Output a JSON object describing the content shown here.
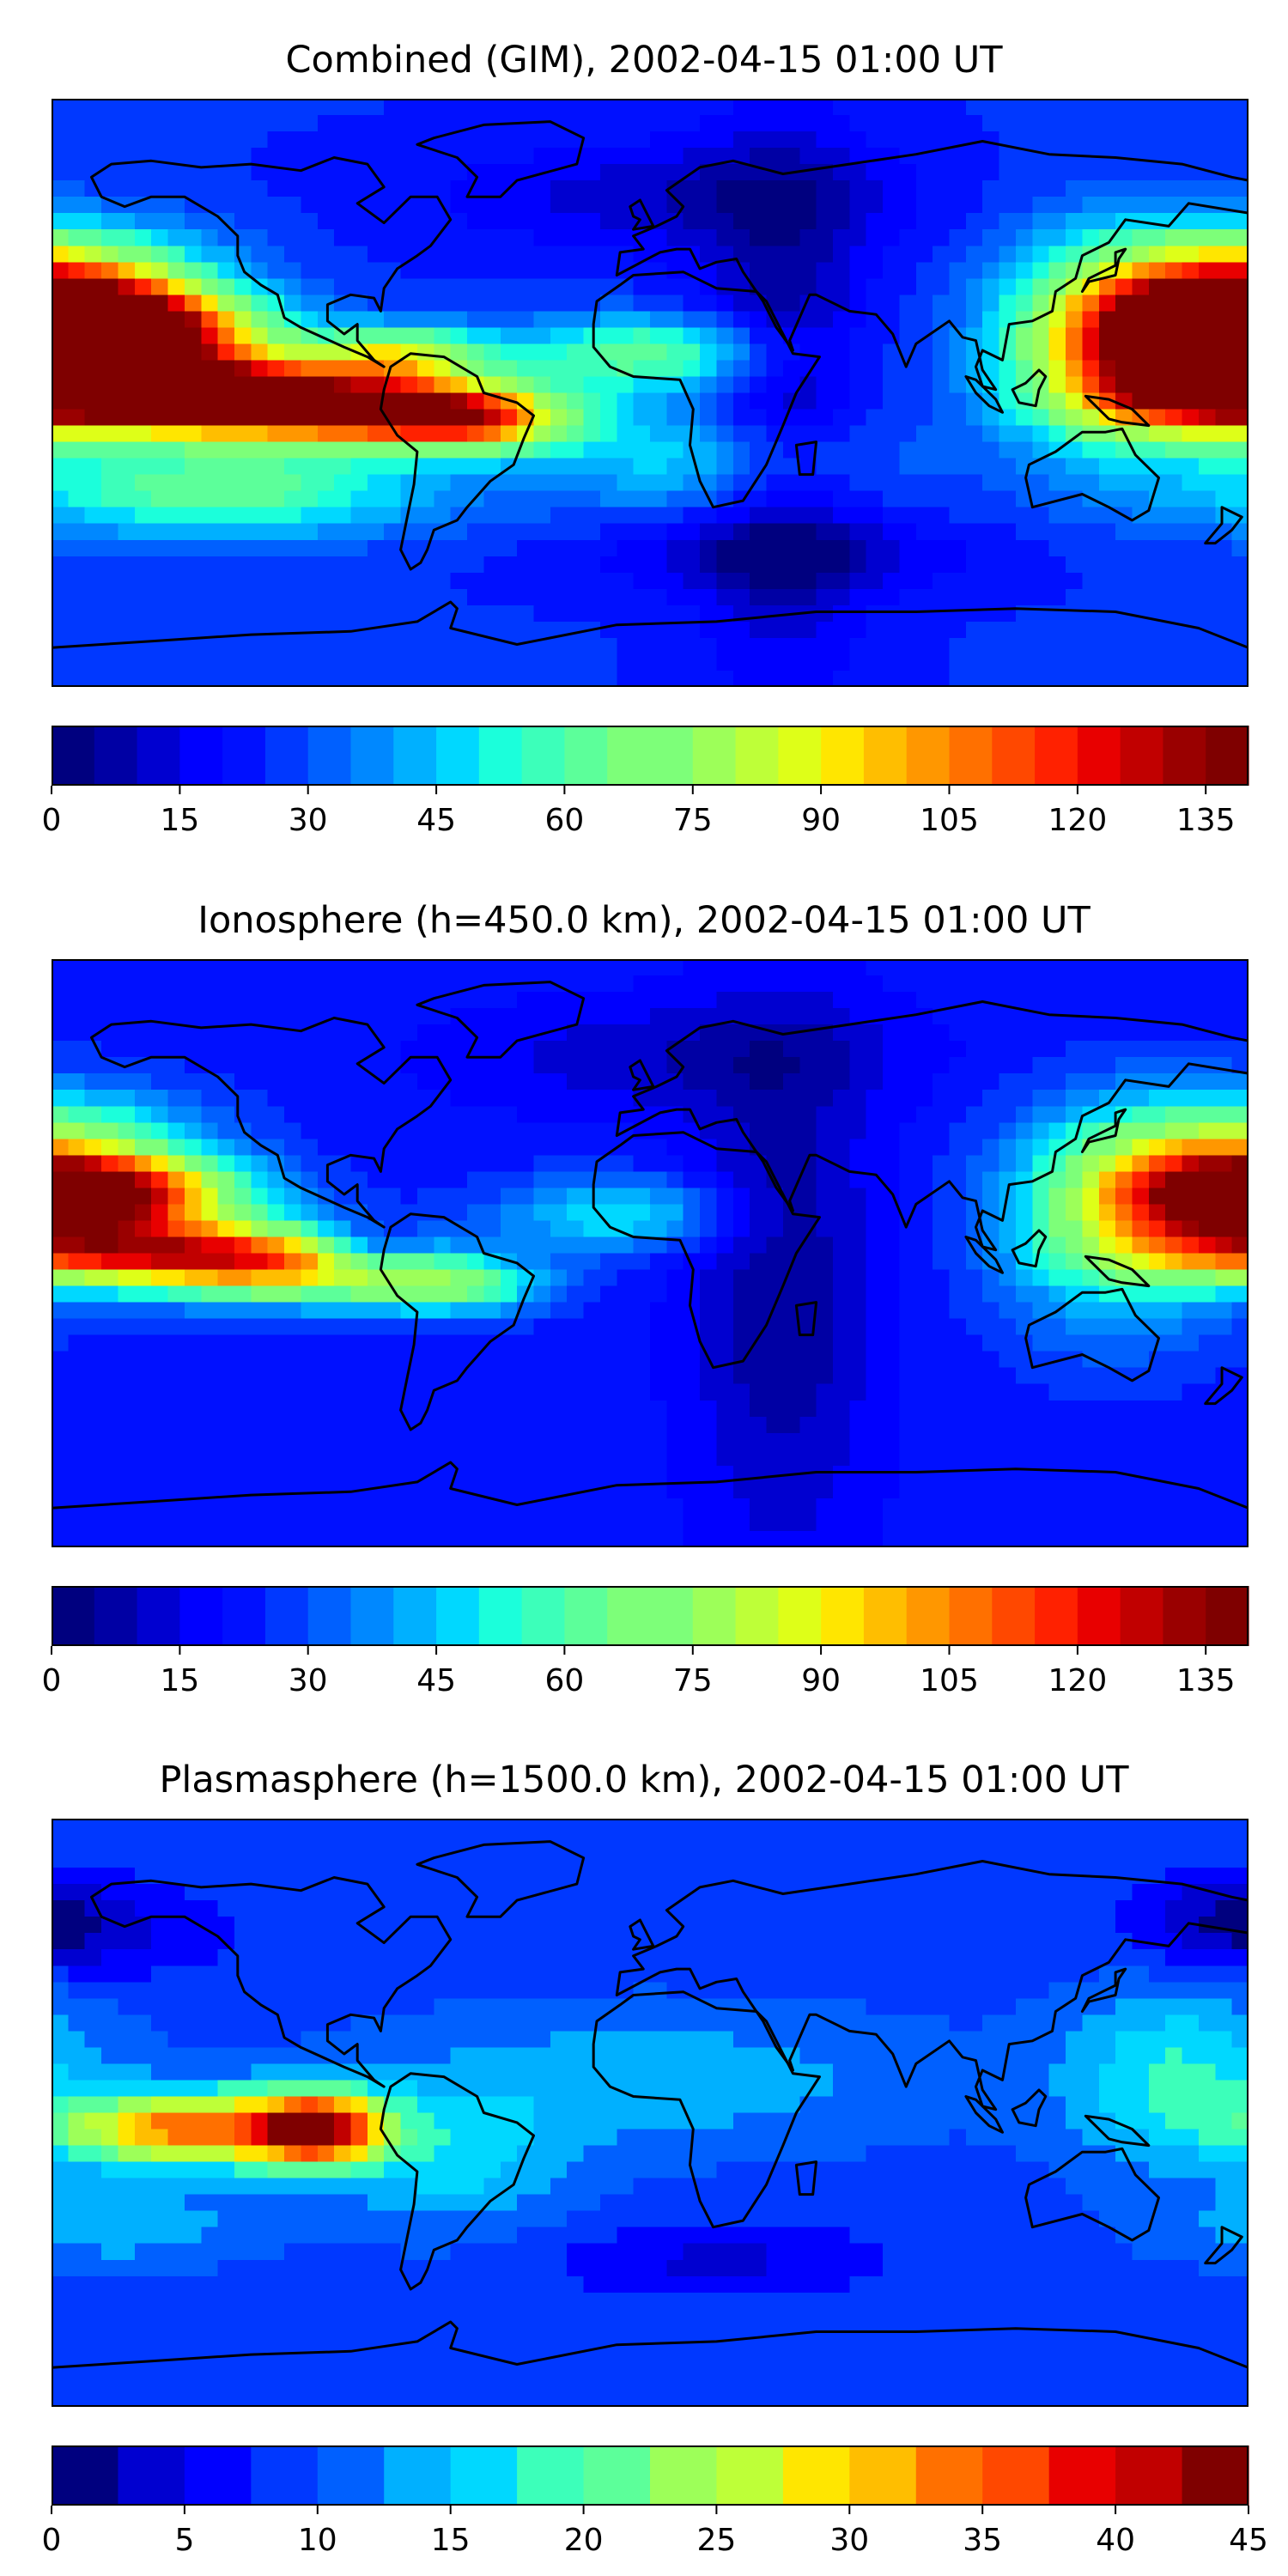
{
  "panels": [
    {
      "id": "combined",
      "title": "Combined (GIM), 2002-04-15 01:00 UT",
      "colorbar": {
        "min": 0,
        "max": 140,
        "levels": 28,
        "ticks": [
          "0",
          "15",
          "30",
          "45",
          "60",
          "75",
          "90",
          "105",
          "120",
          "135"
        ],
        "tick_values": [
          0,
          15,
          30,
          45,
          60,
          75,
          90,
          105,
          120,
          135
        ]
      },
      "map_data": {
        "background_level": 0.18,
        "blobs": [
          {
            "lon": -165,
            "lat": 18,
            "amp": 0.82,
            "slon": 32,
            "slat": 9
          },
          {
            "lon": -145,
            "lat": 0,
            "amp": 0.72,
            "slon": 40,
            "slat": 8
          },
          {
            "lon": -95,
            "lat": -5,
            "amp": 0.55,
            "slon": 35,
            "slat": 8
          },
          {
            "lon": -55,
            "lat": -8,
            "amp": 0.5,
            "slon": 22,
            "slat": 7
          },
          {
            "lon": -75,
            "lat": 12,
            "amp": 0.35,
            "slon": 18,
            "slat": 6
          },
          {
            "lon": -175,
            "lat": 35,
            "amp": 0.35,
            "slon": 30,
            "slat": 12
          },
          {
            "lon": -130,
            "lat": -30,
            "amp": 0.28,
            "slon": 45,
            "slat": 10
          },
          {
            "lon": 172,
            "lat": 22,
            "amp": 0.55,
            "slon": 30,
            "slat": 12
          },
          {
            "lon": 170,
            "lat": 0,
            "amp": 0.45,
            "slon": 30,
            "slat": 10
          },
          {
            "lon": 140,
            "lat": 15,
            "amp": 0.3,
            "slon": 25,
            "slat": 25
          },
          {
            "lon": 0,
            "lat": 12,
            "amp": 0.28,
            "slon": 30,
            "slat": 8
          },
          {
            "lon": 20,
            "lat": -20,
            "amp": 0.18,
            "slon": 35,
            "slat": 12
          },
          {
            "lon": 40,
            "lat": -5,
            "amp": -0.15,
            "slon": 18,
            "slat": 60
          },
          {
            "lon": 10,
            "lat": 60,
            "amp": -0.1,
            "slon": 50,
            "slat": 12
          },
          {
            "lon": 40,
            "lat": -50,
            "amp": -0.1,
            "slon": 40,
            "slat": 8
          }
        ]
      }
    },
    {
      "id": "ionosphere",
      "title": "Ionosphere  (h=450.0 km), 2002-04-15 01:00 UT",
      "colorbar": {
        "min": 0,
        "max": 140,
        "levels": 28,
        "ticks": [
          "0",
          "15",
          "30",
          "45",
          "60",
          "75",
          "90",
          "105",
          "120",
          "135"
        ],
        "tick_values": [
          0,
          15,
          30,
          45,
          60,
          75,
          90,
          105,
          120,
          135
        ]
      },
      "map_data": {
        "background_level": 0.16,
        "blobs": [
          {
            "lon": -165,
            "lat": 18,
            "amp": 0.62,
            "slon": 30,
            "slat": 8
          },
          {
            "lon": -150,
            "lat": 0,
            "amp": 0.55,
            "slon": 40,
            "slat": 7
          },
          {
            "lon": -110,
            "lat": -5,
            "amp": 0.35,
            "slon": 30,
            "slat": 8
          },
          {
            "lon": -60,
            "lat": -10,
            "amp": 0.3,
            "slon": 20,
            "slat": 6
          },
          {
            "lon": -85,
            "lat": 2,
            "amp": -0.18,
            "slon": 12,
            "slat": 5
          },
          {
            "lon": -175,
            "lat": 35,
            "amp": 0.2,
            "slon": 30,
            "slat": 12
          },
          {
            "lon": 172,
            "lat": 18,
            "amp": 0.42,
            "slon": 28,
            "slat": 14
          },
          {
            "lon": 140,
            "lat": 10,
            "amp": 0.25,
            "slon": 25,
            "slat": 25
          },
          {
            "lon": -10,
            "lat": 12,
            "amp": 0.2,
            "slon": 25,
            "slat": 8
          },
          {
            "lon": 40,
            "lat": -10,
            "amp": -0.12,
            "slon": 20,
            "slat": 60
          },
          {
            "lon": 10,
            "lat": 60,
            "amp": -0.08,
            "slon": 50,
            "slat": 12
          }
        ]
      }
    },
    {
      "id": "plasmasphere",
      "title": "Plasmasphere (h=1500.0 km), 2002-04-15 01:00 UT",
      "colorbar": {
        "min": 0,
        "max": 45,
        "levels": 18,
        "ticks": [
          "0",
          "5",
          "10",
          "15",
          "20",
          "25",
          "30",
          "35",
          "40",
          "45"
        ],
        "tick_values": [
          0,
          5,
          10,
          15,
          20,
          25,
          30,
          35,
          40,
          45
        ]
      },
      "map_data": {
        "background_level": 0.2,
        "blobs": [
          {
            "lon": -100,
            "lat": -5,
            "amp": 0.68,
            "slon": 14,
            "slat": 8
          },
          {
            "lon": -140,
            "lat": -5,
            "amp": 0.55,
            "slon": 25,
            "slat": 8
          },
          {
            "lon": -60,
            "lat": -15,
            "amp": 0.15,
            "slon": 25,
            "slat": 15
          },
          {
            "lon": 160,
            "lat": 10,
            "amp": 0.2,
            "slon": 25,
            "slat": 20
          },
          {
            "lon": 0,
            "lat": 10,
            "amp": 0.12,
            "slon": 60,
            "slat": 15
          },
          {
            "lon": -160,
            "lat": -35,
            "amp": 0.12,
            "slon": 30,
            "slat": 8
          },
          {
            "lon": 20,
            "lat": -45,
            "amp": -0.1,
            "slon": 35,
            "slat": 8
          },
          {
            "lon": -170,
            "lat": 55,
            "amp": -0.1,
            "slon": 30,
            "slat": 10
          },
          {
            "lon": 175,
            "lat": 60,
            "amp": -0.1,
            "slon": 20,
            "slat": 10
          }
        ]
      }
    }
  ],
  "jet_colors": [
    "#00007f",
    "#0000a4",
    "#0000d0",
    "#0000ff",
    "#0010ff",
    "#0038ff",
    "#0060ff",
    "#0088ff",
    "#00b0ff",
    "#00d8ff",
    "#1bffdb",
    "#3cffba",
    "#5cff9a",
    "#7dff79",
    "#9dff59",
    "#beff38",
    "#deff18",
    "#ffe600",
    "#ffbe00",
    "#ff9700",
    "#ff7000",
    "#ff4800",
    "#ff2100",
    "#e80000",
    "#c10000",
    "#9a0000",
    "#7f0000"
  ]
}
